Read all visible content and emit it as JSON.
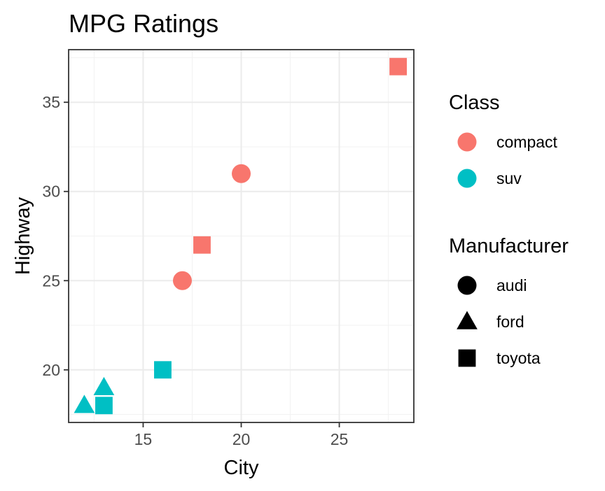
{
  "chart_data": {
    "type": "scatter",
    "title": "MPG Ratings",
    "xlabel": "City",
    "ylabel": "Highway",
    "xlim": [
      11.2,
      28.8
    ],
    "ylim": [
      17.05,
      37.95
    ],
    "xticks": [
      15,
      20,
      25
    ],
    "yticks": [
      20,
      25,
      30,
      35
    ],
    "xticks_minor": [
      12.5,
      17.5,
      22.5,
      27.5
    ],
    "yticks_minor": [
      17.5,
      22.5,
      27.5,
      32.5,
      37.5
    ],
    "grid": true,
    "legend_placement": "right",
    "points": [
      {
        "x": 28,
        "y": 37,
        "class": "compact",
        "manufacturer": "toyota"
      },
      {
        "x": 20,
        "y": 31,
        "class": "compact",
        "manufacturer": "audi"
      },
      {
        "x": 18,
        "y": 27,
        "class": "compact",
        "manufacturer": "toyota"
      },
      {
        "x": 17,
        "y": 25,
        "class": "compact",
        "manufacturer": "audi"
      },
      {
        "x": 16,
        "y": 20,
        "class": "suv",
        "manufacturer": "toyota"
      },
      {
        "x": 13,
        "y": 19,
        "class": "suv",
        "manufacturer": "ford"
      },
      {
        "x": 12,
        "y": 18,
        "class": "suv",
        "manufacturer": "ford"
      },
      {
        "x": 13,
        "y": 18,
        "class": "suv",
        "manufacturer": "toyota"
      }
    ],
    "legends": [
      {
        "title": "Class",
        "items": [
          {
            "label": "compact",
            "color": "#F8766D",
            "shape": "circle"
          },
          {
            "label": "suv",
            "color": "#00BFC4",
            "shape": "circle"
          }
        ]
      },
      {
        "title": "Manufacturer",
        "items": [
          {
            "label": "audi",
            "color": "#000000",
            "shape": "circle"
          },
          {
            "label": "ford",
            "color": "#000000",
            "shape": "triangle"
          },
          {
            "label": "toyota",
            "color": "#000000",
            "shape": "square"
          }
        ]
      }
    ],
    "class_colors": {
      "compact": "#F8766D",
      "suv": "#00BFC4"
    },
    "manufacturer_shapes": {
      "audi": "circle",
      "ford": "triangle",
      "toyota": "square"
    }
  }
}
